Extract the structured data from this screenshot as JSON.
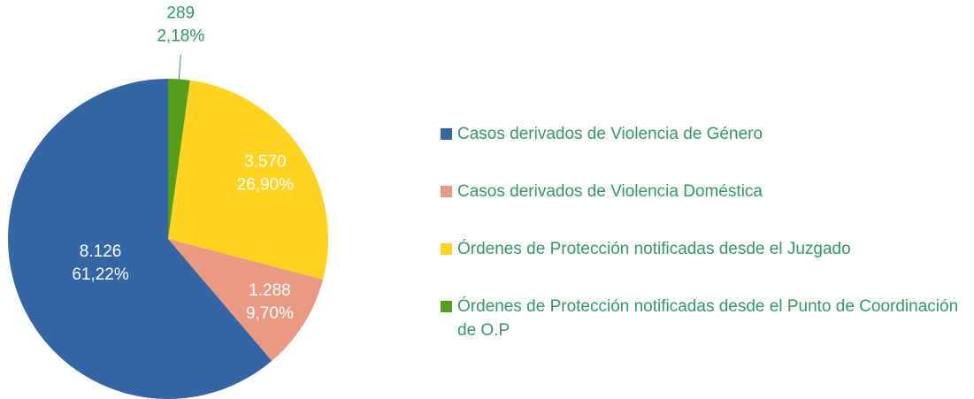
{
  "chart_data": {
    "type": "pie",
    "categories": [
      "Casos derivados de Violencia de Género",
      "Casos derivados de Violencia Doméstica",
      "Órdenes de Protección notificadas desde el Juzgado",
      "Órdenes de Protección notificadas desde el Punto de Coordinación de O.P"
    ],
    "values": [
      8126,
      1288,
      3570,
      289
    ],
    "value_labels": [
      "8.126",
      "1.288",
      "3.570",
      "289"
    ],
    "percent_labels": [
      "61,22%",
      "9,70%",
      "26,90%",
      "2,18%"
    ],
    "colors": [
      "#3465a4",
      "#ea9a82",
      "#ffd320",
      "#579d1c"
    ],
    "legend": "right"
  }
}
